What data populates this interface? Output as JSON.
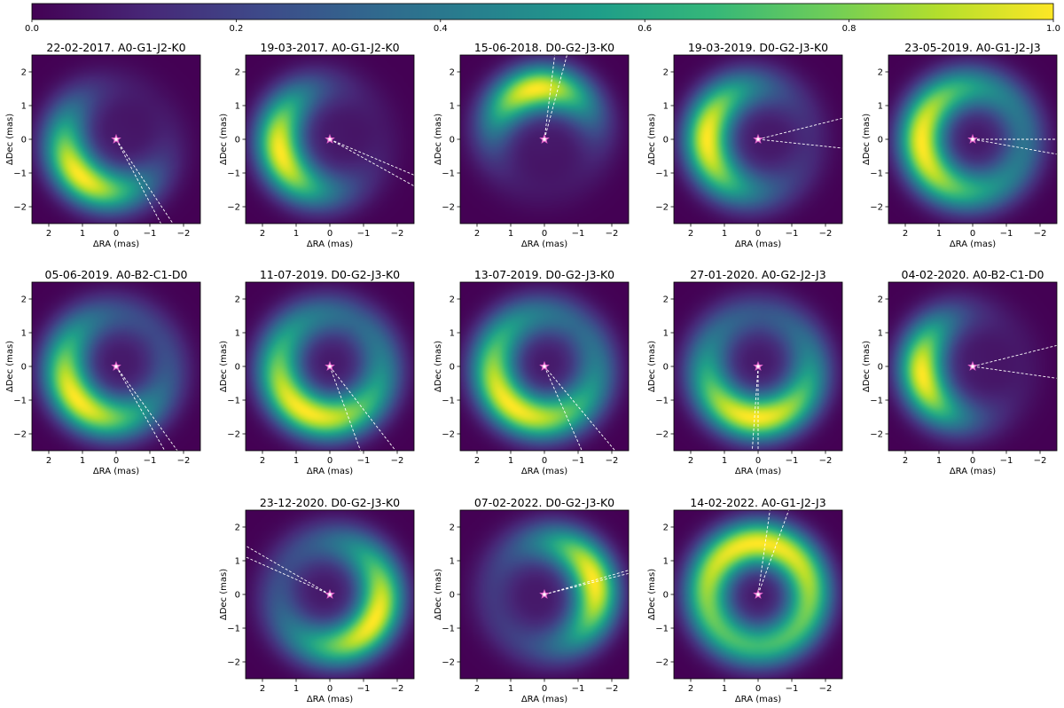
{
  "colorbar": {
    "range": [
      0,
      1
    ],
    "ticks": [
      "0.0",
      "0.2",
      "0.4",
      "0.6",
      "0.8",
      "1.0"
    ],
    "colormap": "viridis",
    "orientation": "horizontal",
    "placement": "top"
  },
  "chart_data": {
    "type": "heatmap",
    "layout": "3 rows (5, 5, 3 panels)",
    "xlabel": "ΔRA (mas)",
    "ylabel": "ΔDec (mas)",
    "xlim": [
      2.5,
      -2.5
    ],
    "ylim": [
      -2.5,
      2.5
    ],
    "xticks": [
      "2",
      "1",
      "0",
      "−1",
      "−2"
    ],
    "yticks": [
      "2",
      "1",
      "0",
      "−1",
      "−2"
    ],
    "colormap": "viridis",
    "grid": false,
    "panels": [
      {
        "title": "22-02-2017. A0-G1-J2-K0",
        "ring_pa_deg": 135,
        "contrast": 0.95,
        "arc_width_deg": 55,
        "lines_pa_deg": [
          214,
          208
        ]
      },
      {
        "title": "19-03-2017. A0-G1-J2-K0",
        "ring_pa_deg": 105,
        "contrast": 0.95,
        "arc_width_deg": 55,
        "lines_pa_deg": [
          247,
          241
        ]
      },
      {
        "title": "15-06-2018. D0-G2-J3-K0",
        "ring_pa_deg": 10,
        "contrast": 0.95,
        "arc_width_deg": 50,
        "lines_pa_deg": [
          345,
          353
        ]
      },
      {
        "title": "19-03-2019. D0-G2-J3-K0",
        "ring_pa_deg": 90,
        "contrast": 0.9,
        "arc_width_deg": 60,
        "lines_pa_deg": [
          284,
          264
        ]
      },
      {
        "title": "23-05-2019. A0-G1-J2-J3",
        "ring_pa_deg": 95,
        "contrast": 0.65,
        "arc_width_deg": 65,
        "lines_pa_deg": [
          270,
          260
        ]
      },
      {
        "title": "05-06-2019. A0-B2-C1-D0",
        "ring_pa_deg": 130,
        "contrast": 0.8,
        "arc_width_deg": 60,
        "lines_pa_deg": [
          216,
          210
        ]
      },
      {
        "title": "11-07-2019. D0-G2-J3-K0",
        "ring_pa_deg": 150,
        "contrast": 0.7,
        "arc_width_deg": 70,
        "lines_pa_deg": [
          218,
          200
        ]
      },
      {
        "title": "13-07-2019. D0-G2-J3-K0",
        "ring_pa_deg": 140,
        "contrast": 0.7,
        "arc_width_deg": 70,
        "lines_pa_deg": [
          220,
          204
        ]
      },
      {
        "title": "27-01-2020. A0-G2-J2-J3",
        "ring_pa_deg": 175,
        "contrast": 0.75,
        "arc_width_deg": 65,
        "lines_pa_deg": [
          180,
          176
        ]
      },
      {
        "title": "04-02-2020. A0-B2-C1-D0",
        "ring_pa_deg": 100,
        "contrast": 0.95,
        "arc_width_deg": 50,
        "lines_pa_deg": [
          284,
          262
        ]
      },
      {
        "title": "23-12-2020. D0-G2-J3-K0",
        "ring_pa_deg": 240,
        "contrast": 0.8,
        "arc_width_deg": 65,
        "lines_pa_deg": [
          66,
          60
        ]
      },
      {
        "title": "07-02-2022. D0-G2-J3-K0",
        "ring_pa_deg": 285,
        "contrast": 0.85,
        "arc_width_deg": 55,
        "lines_pa_deg": [
          284,
          286
        ]
      },
      {
        "title": "14-02-2022. A0-G1-J2-J3",
        "ring_pa_deg": 0,
        "contrast": 0.35,
        "arc_width_deg": 80,
        "lines_pa_deg": [
          340,
          352
        ]
      }
    ]
  }
}
